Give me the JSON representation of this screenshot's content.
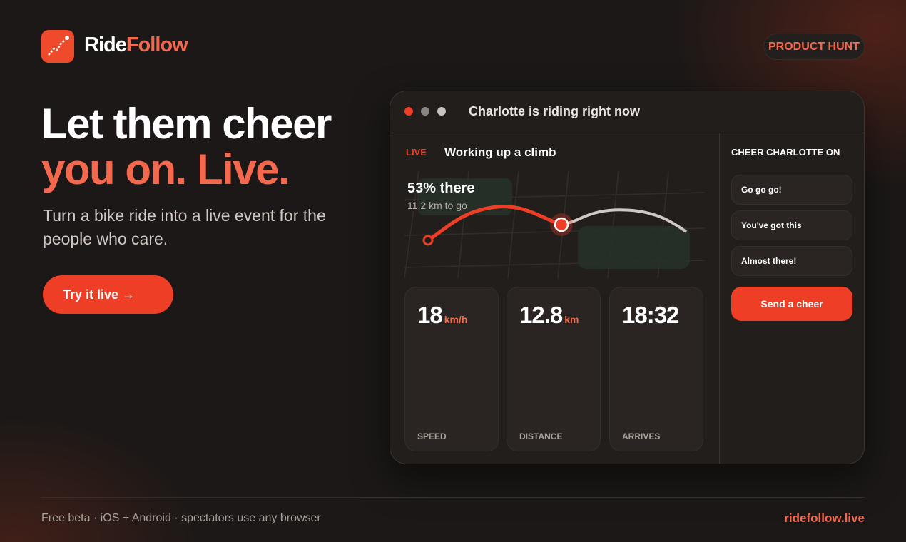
{
  "brand": {
    "part1": "Ride",
    "part2": "Follow"
  },
  "nav": {
    "product_hunt": "PRODUCT HUNT"
  },
  "hero": {
    "headline_line1": "Let them cheer",
    "headline_line2": "you on. Live.",
    "subtitle": "Turn a bike ride into a live event for the people who care.",
    "cta": "Try it live →"
  },
  "app": {
    "window_title": "Charlotte is riding right now",
    "live_badge": "LIVE",
    "status": "Working up a climb",
    "progress": {
      "headline": "53% there",
      "detail": "11.2 km to go"
    },
    "stats": [
      {
        "value": "18",
        "unit": "km/h",
        "label": "SPEED"
      },
      {
        "value": "12.8",
        "unit": "km",
        "label": "DISTANCE"
      },
      {
        "value": "18:32",
        "unit": "",
        "label": "ARRIVES"
      }
    ],
    "cheer": {
      "heading": "CHEER CHARLOTTE ON",
      "options": [
        "Go go go!",
        "You've got this",
        "Almost there!"
      ],
      "send": "Send a cheer"
    }
  },
  "footer": {
    "note": "Free beta · iOS + Android · spectators use any browser",
    "link": "ridefollow.live"
  }
}
